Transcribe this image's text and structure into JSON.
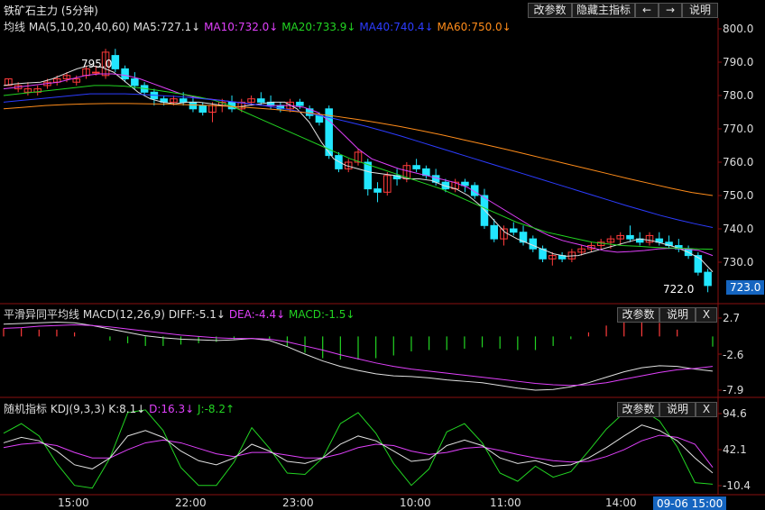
{
  "header": {
    "title": "铁矿石主力 (5分钟)",
    "buttons": [
      "改参数",
      "隐藏主指标",
      "←",
      "→",
      "说明"
    ]
  },
  "panels": {
    "main": {
      "legend_prefix": "均线",
      "legend_params": "MA(5,10,20,40,60)",
      "legend": [
        {
          "text": "MA5:727.1↓",
          "color": "#e0e0e0"
        },
        {
          "text": "MA10:732.0↓",
          "color": "#e040fb"
        },
        {
          "text": "MA20:733.9↓",
          "color": "#22d422"
        },
        {
          "text": "MA40:740.4↓",
          "color": "#2c3cff"
        },
        {
          "text": "MA60:750.0↓",
          "color": "#ff8c1a"
        }
      ],
      "high_label": "795.0",
      "low_label": "722.0",
      "last_price": "723.0",
      "yticks": [
        "800.0",
        "790.0",
        "780.0",
        "770.0",
        "760.0",
        "750.0",
        "740.0",
        "730.0"
      ]
    },
    "macd": {
      "name": "平滑异同平均线",
      "params": "MACD(12,26,9)",
      "legend": [
        {
          "text": "DIFF:-5.1↓",
          "color": "#e0e0e0"
        },
        {
          "text": "DEA:-4.4↓",
          "color": "#e040fb"
        },
        {
          "text": "MACD:-1.5↓",
          "color": "#22d422"
        }
      ],
      "buttons": [
        "改参数",
        "说明",
        "X"
      ],
      "yticks": [
        "2.7",
        "-2.6",
        "-7.9"
      ]
    },
    "kdj": {
      "name": "随机指标",
      "params": "KDJ(9,3,3)",
      "legend": [
        {
          "text": "K:8.1↓",
          "color": "#e0e0e0"
        },
        {
          "text": "D:16.3↓",
          "color": "#e040fb"
        },
        {
          "text": "J:-8.2↑",
          "color": "#22d422"
        }
      ],
      "buttons": [
        "改参数",
        "说明",
        "X"
      ],
      "yticks": [
        "94.6",
        "42.1",
        "-10.4"
      ]
    }
  },
  "xaxis": {
    "labels": [
      "15:00",
      "22:00",
      "23:00",
      "10:00",
      "11:00",
      "14:00"
    ],
    "current": "09-06 15:00"
  },
  "chart_data": [
    {
      "type": "candlestick",
      "title": "铁矿石主力 (5分钟)",
      "ylim": [
        720,
        802
      ],
      "ohlc": [
        [
          783,
          785,
          783,
          785
        ],
        [
          782,
          784,
          781,
          783
        ],
        [
          781,
          784,
          780,
          782
        ],
        [
          781,
          783,
          780,
          782
        ],
        [
          783,
          785,
          782,
          784
        ],
        [
          784,
          786,
          783,
          785
        ],
        [
          785,
          787,
          784,
          786
        ],
        [
          784,
          786,
          783,
          785
        ],
        [
          786,
          789,
          785,
          788
        ],
        [
          787,
          789,
          786,
          787
        ],
        [
          786,
          794,
          785,
          793
        ],
        [
          792,
          794,
          787,
          788
        ],
        [
          788,
          789,
          784,
          785
        ],
        [
          785,
          787,
          782,
          783
        ],
        [
          783,
          784,
          780,
          781
        ],
        [
          781,
          782,
          777,
          779
        ],
        [
          779,
          780,
          777,
          778
        ],
        [
          778,
          780,
          777,
          779
        ],
        [
          779,
          781,
          777,
          778
        ],
        [
          778,
          780,
          775,
          776
        ],
        [
          777,
          778,
          774,
          775
        ],
        [
          775,
          778,
          772,
          777
        ],
        [
          777,
          779,
          775,
          778
        ],
        [
          778,
          780,
          775,
          776
        ],
        [
          776,
          779,
          775,
          778
        ],
        [
          778,
          780,
          777,
          779
        ],
        [
          779,
          781,
          777,
          778
        ],
        [
          778,
          780,
          776,
          777
        ],
        [
          777,
          778,
          775,
          776
        ],
        [
          776,
          779,
          775,
          778
        ],
        [
          778,
          779,
          776,
          777
        ],
        [
          776,
          777,
          773,
          774
        ],
        [
          774,
          775,
          771,
          772
        ],
        [
          776,
          777,
          761,
          762
        ],
        [
          762,
          763,
          757,
          758
        ],
        [
          758,
          761,
          757,
          760
        ],
        [
          760,
          764,
          759,
          763
        ],
        [
          760,
          761,
          750,
          752
        ],
        [
          752,
          754,
          748,
          751
        ],
        [
          751,
          757,
          750,
          756
        ],
        [
          756,
          758,
          753,
          755
        ],
        [
          755,
          760,
          754,
          759
        ],
        [
          759,
          761,
          757,
          758
        ],
        [
          758,
          759,
          755,
          756
        ],
        [
          756,
          758,
          753,
          754
        ],
        [
          754,
          755,
          751,
          752
        ],
        [
          752,
          755,
          751,
          754
        ],
        [
          754,
          755,
          751,
          753
        ],
        [
          753,
          754,
          749,
          750
        ],
        [
          750,
          752,
          740,
          741
        ],
        [
          741,
          743,
          736,
          737
        ],
        [
          737,
          741,
          735,
          740
        ],
        [
          740,
          742,
          738,
          739
        ],
        [
          739,
          741,
          735,
          736
        ],
        [
          737,
          738,
          733,
          734
        ],
        [
          734,
          735,
          730,
          731
        ],
        [
          731,
          733,
          729,
          732
        ],
        [
          732,
          733,
          730,
          731
        ],
        [
          731,
          734,
          730,
          733
        ],
        [
          733,
          735,
          732,
          734
        ],
        [
          734,
          736,
          733,
          735
        ],
        [
          735,
          737,
          734,
          736
        ],
        [
          736,
          738,
          734,
          737
        ],
        [
          737,
          739,
          735,
          738
        ],
        [
          738,
          741,
          736,
          737
        ],
        [
          737,
          739,
          735,
          736
        ],
        [
          736,
          739,
          735,
          738
        ],
        [
          737,
          739,
          735,
          736
        ],
        [
          736,
          738,
          734,
          735
        ],
        [
          735,
          737,
          733,
          734
        ],
        [
          734,
          735,
          731,
          732
        ],
        [
          732,
          733,
          726,
          727
        ],
        [
          727,
          728,
          721,
          723
        ]
      ],
      "ma": {
        "MA5": [
          783,
          783.5,
          783.8,
          784,
          785,
          786.5,
          788,
          789,
          788.5,
          787,
          784,
          781,
          779,
          778,
          777.5,
          778,
          778,
          777.5,
          777,
          776.5,
          777,
          777.5,
          778,
          778,
          776,
          772,
          766,
          761,
          759,
          758,
          757,
          756.5,
          756,
          755,
          755,
          754.5,
          753,
          752,
          750,
          747,
          743,
          739,
          737,
          735.5,
          734,
          732.5,
          731.8,
          732,
          733,
          734,
          735,
          736,
          737,
          736.5,
          735.5,
          734.5,
          733,
          731,
          727.1
        ],
        "MA10": [
          782,
          782.5,
          783,
          783.5,
          784,
          785,
          786,
          786.5,
          786.5,
          786,
          785,
          783.5,
          782,
          780.5,
          779.5,
          779,
          778.5,
          778,
          777.5,
          777,
          777,
          777,
          776.5,
          775,
          772,
          768,
          764,
          761,
          759.5,
          758,
          757,
          756,
          755,
          754,
          752.5,
          750,
          747.5,
          745,
          742.5,
          740,
          738,
          736.5,
          735.5,
          734.5,
          733.5,
          733,
          733.2,
          733.5,
          734,
          734.2,
          734,
          733.5,
          732
        ],
        "MA20": [
          780,
          780.5,
          781,
          781.5,
          782,
          782.5,
          783,
          783,
          782.8,
          782.3,
          781.7,
          781,
          780.3,
          779.5,
          778.5,
          777,
          775,
          773,
          771,
          769,
          767,
          765,
          763,
          761,
          759.5,
          758,
          756.5,
          755,
          753.5,
          752,
          750,
          748,
          746,
          744,
          742,
          740.5,
          739,
          738,
          737,
          736,
          735.5,
          735,
          734.8,
          734.5,
          734.3,
          734.2,
          734,
          733.9
        ],
        "MA40": [
          778,
          778.5,
          779,
          779.5,
          780,
          780.5,
          780.5,
          780.5,
          780.3,
          780,
          779.7,
          779.3,
          778.8,
          778.3,
          777.7,
          777,
          776.2,
          775.3,
          774.3,
          773.2,
          772,
          770.7,
          769.3,
          767.8,
          766.2,
          764.6,
          763,
          761.4,
          759.8,
          758.2,
          756.6,
          755,
          753.4,
          751.8,
          750.2,
          748.6,
          747,
          745.5,
          744,
          742.7,
          741.5,
          740.4
        ],
        "MA60": [
          776,
          776.5,
          777,
          777.3,
          777.5,
          777.6,
          777.6,
          777.5,
          777.4,
          777.2,
          777,
          776.7,
          776.3,
          775.8,
          775.2,
          774.5,
          773.7,
          772.8,
          771.8,
          770.7,
          769.5,
          768.2,
          766.8,
          765.4,
          764,
          762.5,
          761,
          759.5,
          758,
          756.5,
          755,
          753.6,
          752.2,
          750.9,
          750
        ]
      }
    },
    {
      "type": "line+bar",
      "title": "MACD(12,26,9)",
      "ylim": [
        -8.6,
        3.2
      ],
      "series": [
        {
          "name": "DIFF",
          "values": [
            1.8,
            1.9,
            2.0,
            2.1,
            2.0,
            1.6,
            1.1,
            0.6,
            0.1,
            -0.2,
            -0.4,
            -0.5,
            -0.6,
            -0.5,
            -0.3,
            -0.6,
            -1.5,
            -2.6,
            -3.6,
            -4.4,
            -5.0,
            -5.5,
            -5.8,
            -5.9,
            -6.1,
            -6.4,
            -6.6,
            -6.8,
            -7.2,
            -7.6,
            -7.9,
            -7.8,
            -7.4,
            -6.8,
            -6.0,
            -5.2,
            -4.6,
            -4.3,
            -4.4,
            -4.8,
            -5.1
          ]
        },
        {
          "name": "DEA",
          "values": [
            1.2,
            1.3,
            1.5,
            1.6,
            1.7,
            1.6,
            1.4,
            1.1,
            0.8,
            0.5,
            0.2,
            0.0,
            -0.2,
            -0.3,
            -0.3,
            -0.4,
            -0.8,
            -1.4,
            -2.0,
            -2.7,
            -3.3,
            -3.9,
            -4.4,
            -4.8,
            -5.1,
            -5.4,
            -5.7,
            -6.0,
            -6.3,
            -6.6,
            -6.9,
            -7.1,
            -7.2,
            -7.1,
            -6.8,
            -6.3,
            -5.8,
            -5.3,
            -4.9,
            -4.7,
            -4.4
          ]
        },
        {
          "name": "MACD",
          "values": [
            1.2,
            1.2,
            1.0,
            1.0,
            0.6,
            0.0,
            -0.6,
            -1.0,
            -1.4,
            -1.4,
            -1.2,
            -1.0,
            -0.8,
            -0.4,
            0.0,
            -0.4,
            -1.4,
            -2.4,
            -3.2,
            -3.4,
            -3.4,
            -3.2,
            -2.8,
            -2.2,
            -2.0,
            -2.0,
            -1.8,
            -1.6,
            -1.8,
            -2.0,
            -2.0,
            -1.4,
            -0.4,
            0.6,
            1.6,
            2.2,
            2.4,
            2.0,
            1.0,
            0.0,
            -1.5
          ]
        }
      ]
    },
    {
      "type": "line",
      "title": "KDJ(9,3,3)",
      "ylim": [
        -13,
        98
      ],
      "series": [
        {
          "name": "K",
          "values": [
            52,
            60,
            55,
            40,
            20,
            14,
            30,
            62,
            70,
            60,
            40,
            26,
            20,
            30,
            50,
            40,
            25,
            22,
            30,
            50,
            62,
            55,
            40,
            25,
            28,
            48,
            56,
            48,
            30,
            22,
            26,
            18,
            20,
            30,
            45,
            62,
            78,
            70,
            55,
            30,
            8.1
          ]
        },
        {
          "name": "D",
          "values": [
            45,
            50,
            52,
            48,
            38,
            30,
            30,
            42,
            52,
            56,
            52,
            44,
            36,
            32,
            38,
            38,
            34,
            30,
            30,
            36,
            45,
            50,
            48,
            40,
            35,
            38,
            44,
            46,
            41,
            35,
            30,
            26,
            24,
            25,
            32,
            42,
            55,
            63,
            60,
            50,
            16.3
          ]
        },
        {
          "name": "J",
          "values": [
            66,
            80,
            62,
            22,
            -10,
            -14,
            30,
            96,
            100,
            70,
            16,
            -10,
            -10,
            24,
            74,
            44,
            8,
            6,
            30,
            80,
            96,
            66,
            22,
            -10,
            14,
            68,
            80,
            52,
            8,
            -4,
            18,
            2,
            10,
            40,
            72,
            96,
            100,
            84,
            46,
            -6,
            -8.2
          ]
        }
      ]
    }
  ]
}
